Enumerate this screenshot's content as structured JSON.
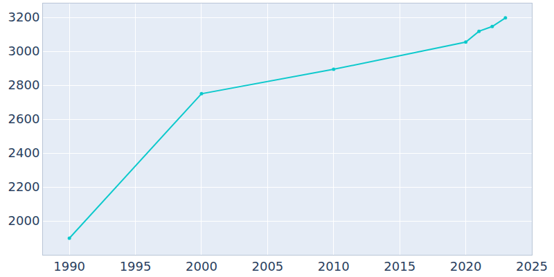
{
  "chart_data": {
    "type": "line",
    "x": [
      1990,
      2000,
      2010,
      2020,
      2021,
      2022,
      2023
    ],
    "values": [
      1898,
      2750,
      2894,
      3054,
      3118,
      3146,
      3197
    ],
    "color": "#0dc9cc",
    "marker": "circle",
    "xlim": [
      1988,
      2025
    ],
    "xticks": [
      1990,
      1995,
      2000,
      2005,
      2010,
      2015,
      2020,
      2025
    ],
    "ylim": [
      1800,
      3282
    ],
    "yticks": [
      2000,
      2200,
      2400,
      2600,
      2800,
      3000,
      3200
    ],
    "grid": true
  }
}
